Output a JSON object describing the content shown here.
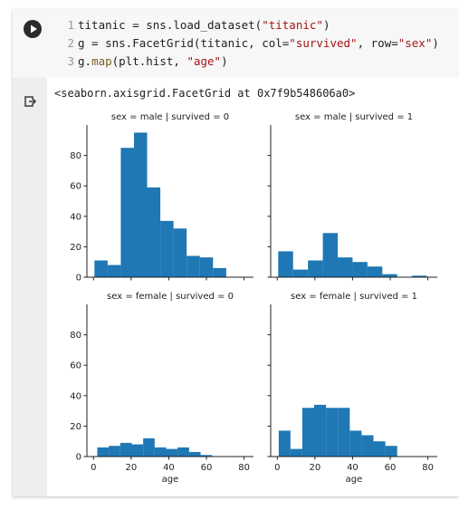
{
  "cell": {
    "run_button": "run-cell",
    "code_lines": [
      {
        "num": "1",
        "parts": [
          {
            "t": "titanic = sns.load_dataset(",
            "c": ""
          },
          {
            "t": "\"titanic\"",
            "c": "str"
          },
          {
            "t": ")",
            "c": ""
          }
        ]
      },
      {
        "num": "2",
        "parts": [
          {
            "t": "g = sns.FacetGrid(titanic, col=",
            "c": ""
          },
          {
            "t": "\"survived\"",
            "c": "str"
          },
          {
            "t": ", row=",
            "c": ""
          },
          {
            "t": "\"sex\"",
            "c": "str"
          },
          {
            "t": ")",
            "c": ""
          }
        ]
      },
      {
        "num": "3",
        "parts": [
          {
            "t": "g.",
            "c": ""
          },
          {
            "t": "map",
            "c": "fn"
          },
          {
            "t": "(plt.hist, ",
            "c": ""
          },
          {
            "t": "\"age\"",
            "c": "str"
          },
          {
            "t": ")",
            "c": ""
          }
        ]
      }
    ],
    "output_text": "<seaborn.axisgrid.FacetGrid at 0x7f9b548606a0>"
  },
  "chart_data": {
    "type": "bar",
    "bar_color": "#1f77b4",
    "xlabel": "age",
    "xlim": [
      -3.5,
      85
    ],
    "ylim": [
      0,
      100
    ],
    "xticks": [
      0,
      20,
      40,
      60,
      80
    ],
    "yticks": [
      0,
      20,
      40,
      60,
      80
    ],
    "grid": false,
    "facets": [
      {
        "title": "sex = male | survived = 0",
        "row": 0,
        "col": 0,
        "bins": [
          {
            "x0": 0.5,
            "x1": 7.5,
            "count": 11
          },
          {
            "x0": 7.5,
            "x1": 14.5,
            "count": 8
          },
          {
            "x0": 14.5,
            "x1": 21.5,
            "count": 85
          },
          {
            "x0": 21.5,
            "x1": 28.5,
            "count": 95
          },
          {
            "x0": 28.5,
            "x1": 35.5,
            "count": 59
          },
          {
            "x0": 35.5,
            "x1": 42.5,
            "count": 37
          },
          {
            "x0": 42.5,
            "x1": 49.5,
            "count": 32
          },
          {
            "x0": 49.5,
            "x1": 56.5,
            "count": 14
          },
          {
            "x0": 56.5,
            "x1": 63.5,
            "count": 13
          },
          {
            "x0": 63.5,
            "x1": 70.5,
            "count": 6
          }
        ]
      },
      {
        "title": "sex = male | survived = 1",
        "row": 0,
        "col": 1,
        "bins": [
          {
            "x0": 0.5,
            "x1": 8.4,
            "count": 17
          },
          {
            "x0": 8.4,
            "x1": 16.3,
            "count": 5
          },
          {
            "x0": 16.3,
            "x1": 24.2,
            "count": 11
          },
          {
            "x0": 24.2,
            "x1": 32.1,
            "count": 29
          },
          {
            "x0": 32.1,
            "x1": 40,
            "count": 13
          },
          {
            "x0": 40,
            "x1": 47.9,
            "count": 10
          },
          {
            "x0": 47.9,
            "x1": 55.8,
            "count": 7
          },
          {
            "x0": 55.8,
            "x1": 63.7,
            "count": 2
          },
          {
            "x0": 63.7,
            "x1": 71.6,
            "count": 0
          },
          {
            "x0": 71.6,
            "x1": 79.5,
            "count": 1
          }
        ]
      },
      {
        "title": "sex = female | survived = 0",
        "row": 1,
        "col": 0,
        "bins": [
          {
            "x0": 2,
            "x1": 8.1,
            "count": 6
          },
          {
            "x0": 8.1,
            "x1": 14.2,
            "count": 7
          },
          {
            "x0": 14.2,
            "x1": 20.3,
            "count": 9
          },
          {
            "x0": 20.3,
            "x1": 26.4,
            "count": 8
          },
          {
            "x0": 26.4,
            "x1": 32.5,
            "count": 12
          },
          {
            "x0": 32.5,
            "x1": 38.6,
            "count": 6
          },
          {
            "x0": 38.6,
            "x1": 44.7,
            "count": 5
          },
          {
            "x0": 44.7,
            "x1": 50.8,
            "count": 6
          },
          {
            "x0": 50.8,
            "x1": 56.9,
            "count": 3
          },
          {
            "x0": 56.9,
            "x1": 63,
            "count": 1
          }
        ]
      },
      {
        "title": "sex = female | survived = 1",
        "row": 1,
        "col": 1,
        "bins": [
          {
            "x0": 0.75,
            "x1": 7,
            "count": 17
          },
          {
            "x0": 7,
            "x1": 13.3,
            "count": 5
          },
          {
            "x0": 13.3,
            "x1": 19.6,
            "count": 32
          },
          {
            "x0": 19.6,
            "x1": 25.9,
            "count": 34
          },
          {
            "x0": 25.9,
            "x1": 32.2,
            "count": 32
          },
          {
            "x0": 32.2,
            "x1": 38.5,
            "count": 32
          },
          {
            "x0": 38.5,
            "x1": 44.8,
            "count": 17
          },
          {
            "x0": 44.8,
            "x1": 51.1,
            "count": 14
          },
          {
            "x0": 51.1,
            "x1": 57.4,
            "count": 10
          },
          {
            "x0": 57.4,
            "x1": 63.7,
            "count": 7
          }
        ]
      }
    ]
  }
}
